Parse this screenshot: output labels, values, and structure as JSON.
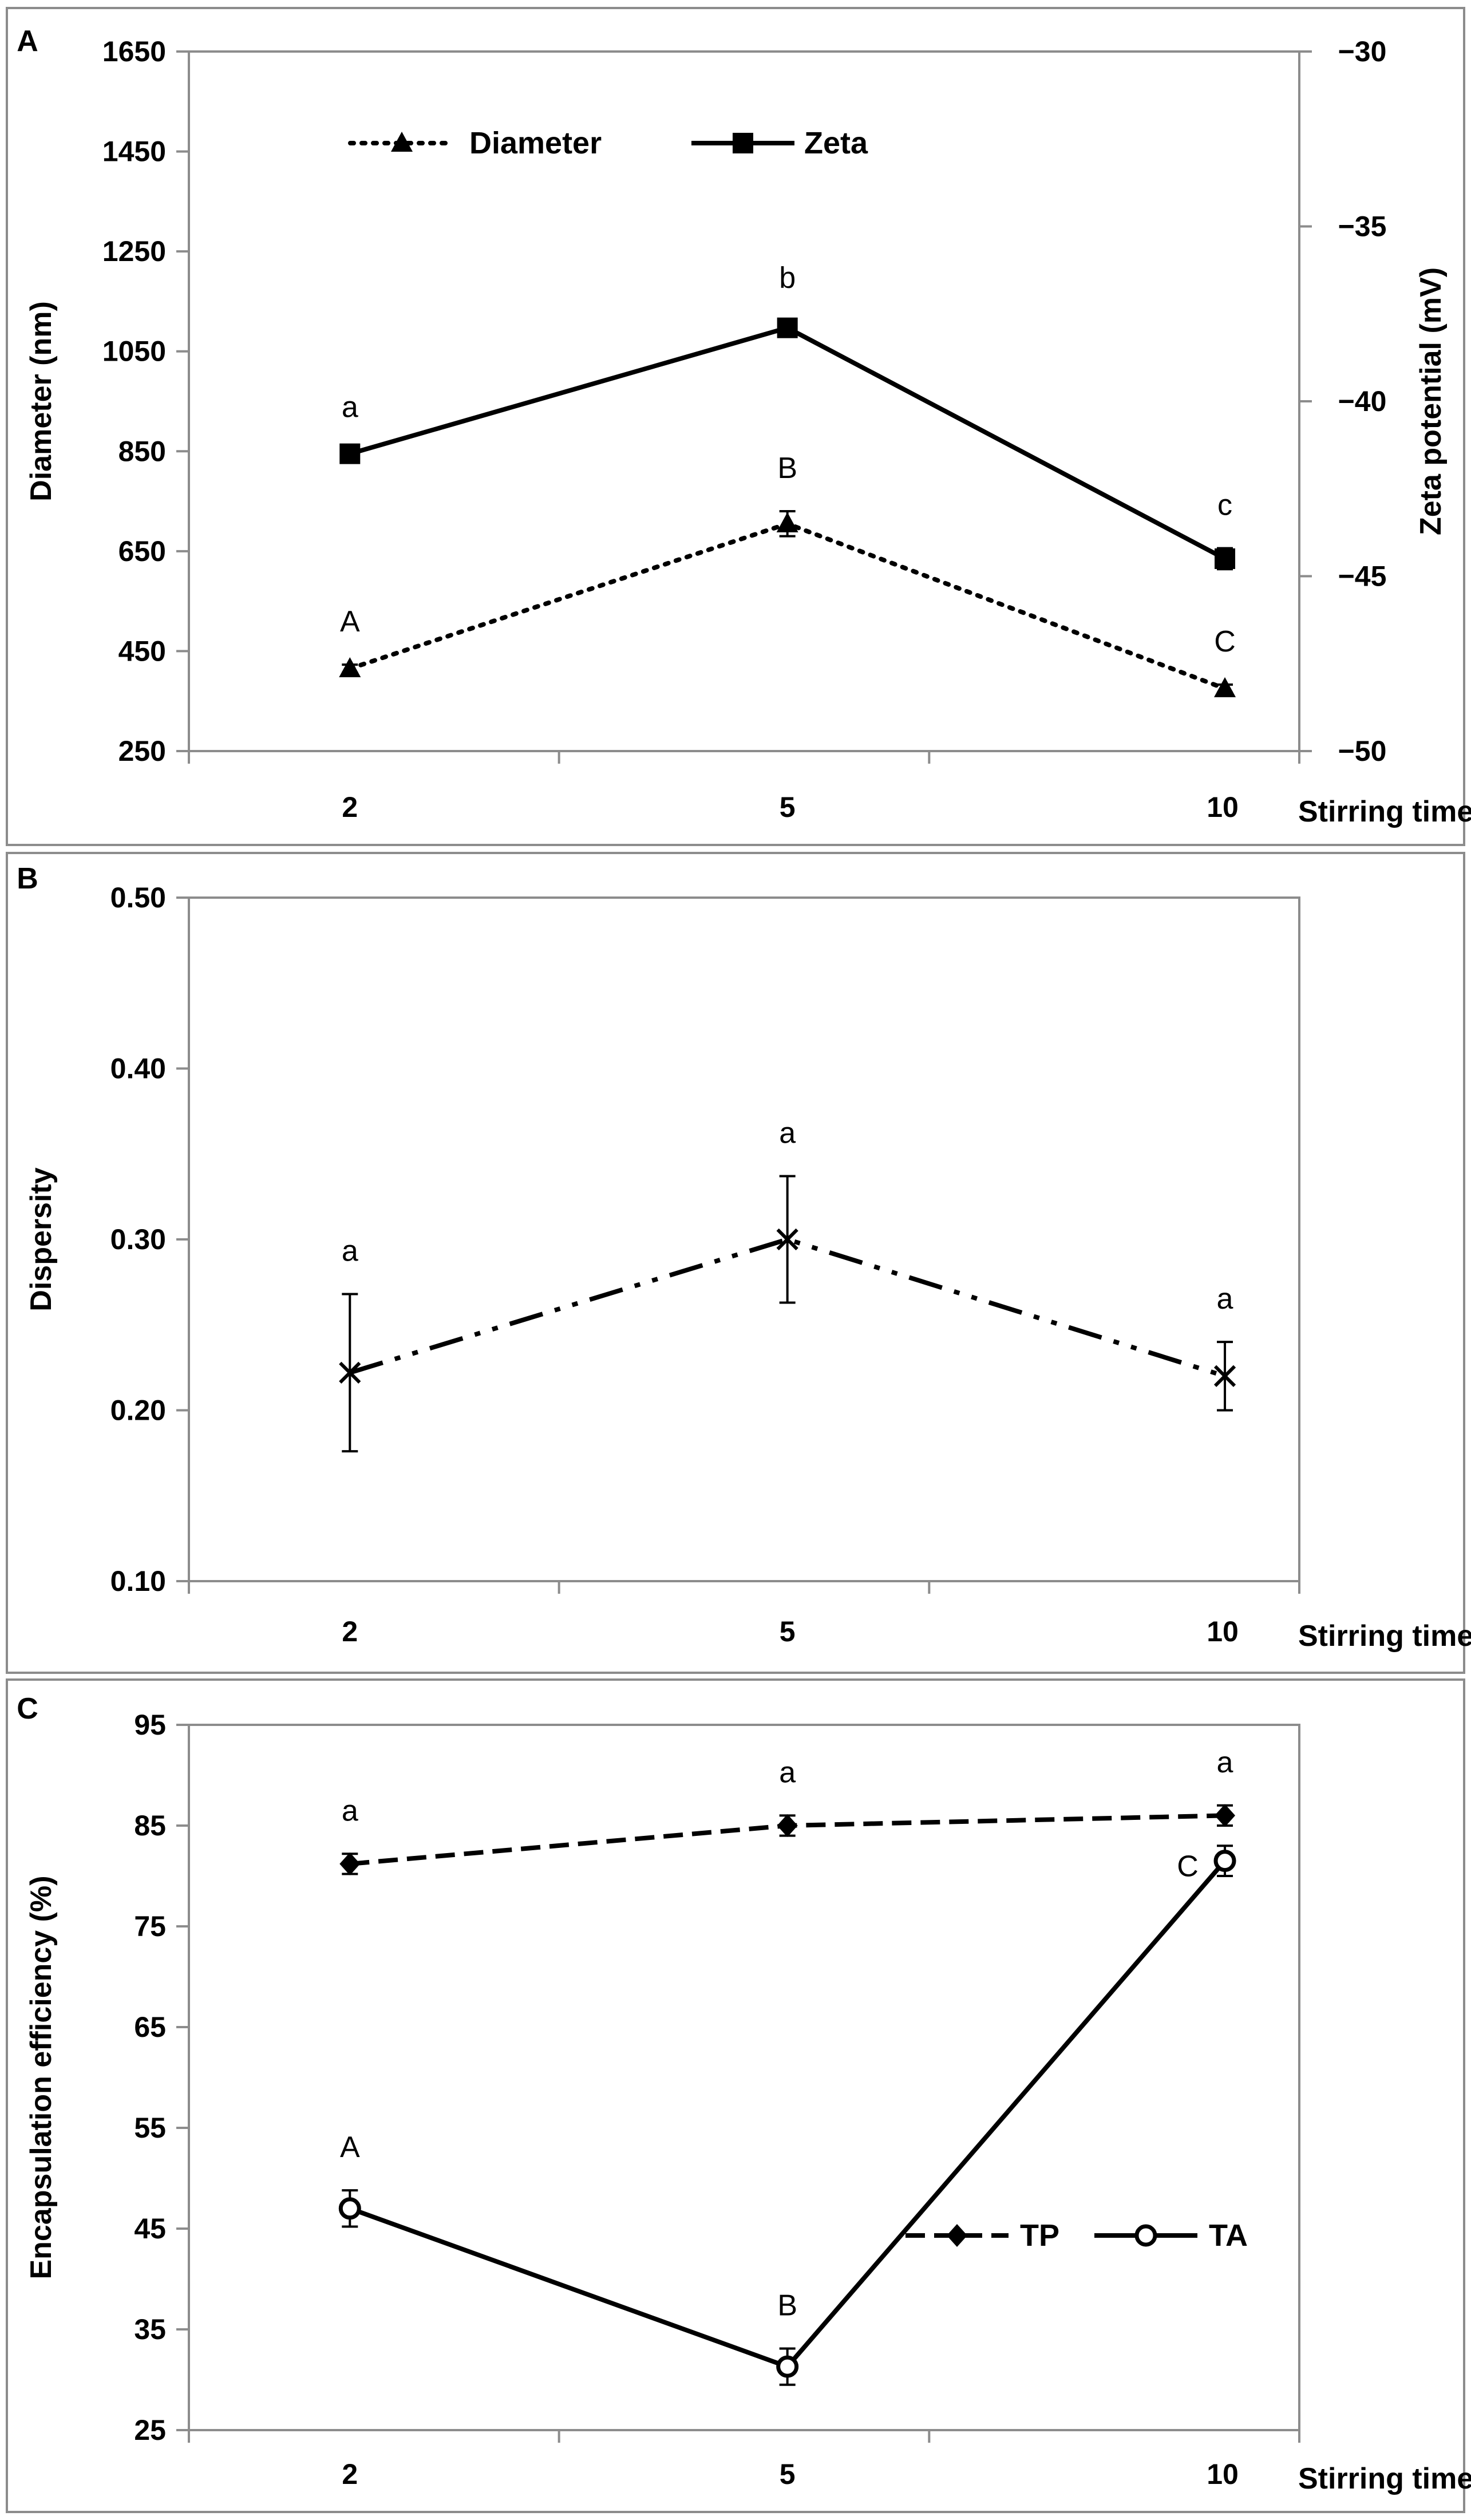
{
  "chart_data": [
    {
      "panel": "A",
      "type": "line",
      "categories": [
        "2",
        "5",
        "10"
      ],
      "xlabel": "Stirring time (min)",
      "ylabel": "Diameter (nm)",
      "ylim": [
        250,
        1650
      ],
      "yticks": [
        "1650",
        "1450",
        "1250",
        "1050",
        "850",
        "650",
        "450",
        "250"
      ],
      "y2label": "Zeta potential (mV)",
      "y2lim": [
        -50,
        -30
      ],
      "y2ticks": [
        "-30",
        "-35",
        "-40",
        "-45",
        "-50"
      ],
      "grid": false,
      "legend_position": "top-left",
      "series": [
        {
          "name": "Diameter",
          "axis": "left",
          "style": "dotted",
          "marker": "triangle",
          "values": [
            415,
            705,
            375
          ],
          "errors": [
            8,
            25,
            8
          ],
          "letters": [
            "A",
            "B",
            "C"
          ]
        },
        {
          "name": "Zeta",
          "axis": "right",
          "style": "solid",
          "marker": "square",
          "values": [
            -41.5,
            -37.9,
            -44.5
          ],
          "errors": [
            0.1,
            0.2,
            0.3
          ],
          "letters": [
            "a",
            "b",
            "c"
          ]
        }
      ]
    },
    {
      "panel": "B",
      "type": "line",
      "categories": [
        "2",
        "5",
        "10"
      ],
      "xlabel": "Stirring time (min)",
      "ylabel": "Dispersity",
      "ylim": [
        0.1,
        0.5
      ],
      "yticks": [
        "0.50",
        "0.40",
        "0.30",
        "0.20",
        "0.10"
      ],
      "grid": false,
      "series": [
        {
          "style": "dash-dot-dot",
          "marker": "x",
          "values": [
            0.222,
            0.3,
            0.22
          ],
          "errors": [
            0.046,
            0.037,
            0.02
          ],
          "letters": [
            "a",
            "a",
            "a"
          ]
        }
      ]
    },
    {
      "panel": "C",
      "type": "line",
      "categories": [
        "2",
        "5",
        "10"
      ],
      "xlabel": "Stirring time (min)",
      "ylabel": "Encapsulation efficiency (%)",
      "ylim": [
        25,
        95
      ],
      "yticks": [
        "95",
        "85",
        "75",
        "65",
        "55",
        "45",
        "35",
        "25"
      ],
      "grid": false,
      "legend_position": "bottom-right",
      "series": [
        {
          "name": "TP",
          "style": "dashed",
          "marker": "diamond",
          "values": [
            81.2,
            85.0,
            86.0
          ],
          "errors": [
            1.0,
            1.0,
            1.0
          ],
          "letters": [
            "a",
            "a",
            "a"
          ]
        },
        {
          "name": "TA",
          "style": "solid",
          "marker": "circle",
          "values": [
            47.0,
            31.3,
            81.5
          ],
          "errors": [
            1.8,
            1.8,
            1.5
          ],
          "letters": [
            "A",
            "B",
            "C"
          ]
        }
      ]
    }
  ]
}
